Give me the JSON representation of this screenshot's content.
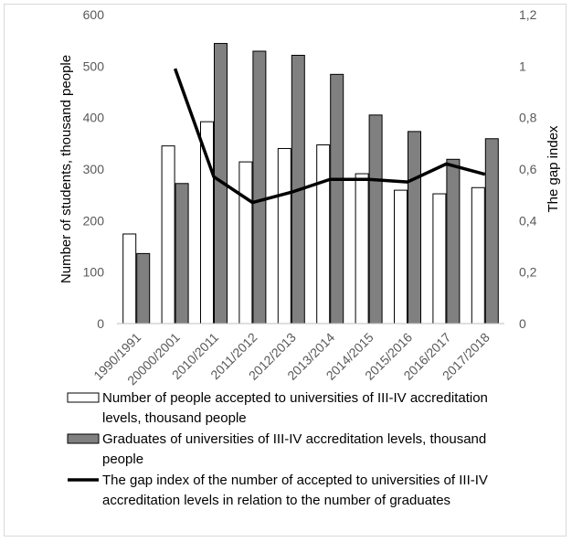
{
  "chart_data": {
    "type": "bar",
    "categories": [
      "1990/1991",
      "20000/2001",
      "2010/2011",
      "2011/2012",
      "2012/2013",
      "2013/2014",
      "2014/2015",
      "2015/2016",
      "2016/2017",
      "2017/2018"
    ],
    "series": [
      {
        "name": "Number of people accepted to universities of III-IV accreditation levels, thousand people",
        "legend_lines": [
          "Number of people accepted to universities of III-IV accreditation",
          "levels, thousand people"
        ],
        "type": "bar",
        "axis": "left",
        "color": "#ffffff",
        "stroke": "#000000",
        "values": [
          174,
          345,
          392,
          314,
          340,
          347,
          291,
          259,
          252,
          264
        ]
      },
      {
        "name": "Graduates of universities of III-IV accreditation levels, thousand people",
        "legend_lines": [
          "Graduates of universities of III-IV accreditation levels, thousand",
          "people"
        ],
        "type": "bar",
        "axis": "left",
        "color": "#808080",
        "stroke": "#000000",
        "values": [
          136,
          272,
          544,
          529,
          521,
          484,
          405,
          373,
          319,
          359
        ]
      },
      {
        "name": "The gap index of the number of accepted to universities of III-IV accreditation levels in relation to the number of graduates",
        "legend_lines": [
          "The gap index of the number of accepted to universities of III-IV",
          "accreditation levels in relation to the number of graduates"
        ],
        "type": "line",
        "axis": "right",
        "color": "#000000",
        "values": [
          null,
          0.99,
          0.57,
          0.47,
          0.51,
          0.56,
          0.56,
          0.55,
          0.62,
          0.58
        ]
      }
    ],
    "ylabel": "Number of students, thousand people",
    "ylim": [
      0,
      600
    ],
    "yticks": [
      0,
      100,
      200,
      300,
      400,
      500,
      600
    ],
    "y2label": "The gap index",
    "y2lim": [
      0,
      1.2
    ],
    "y2tick_labels": [
      "0",
      "0,2",
      "0,4",
      "0,6",
      "0,8",
      "1",
      "1,2"
    ],
    "grid": false,
    "legend_position": "bottom"
  }
}
